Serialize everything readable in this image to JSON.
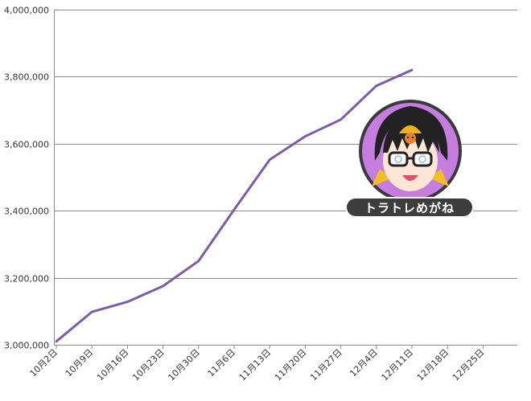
{
  "chart_data": {
    "type": "line",
    "title": "",
    "xlabel": "",
    "ylabel": "",
    "categories": [
      "10月2日",
      "10月9日",
      "10月16日",
      "10月23日",
      "10月30日",
      "11月6日",
      "11月13日",
      "11月20日",
      "11月27日",
      "12月4日",
      "12月11日",
      "12月18日",
      "12月25日"
    ],
    "series": [
      {
        "values": [
          3010000,
          3098000,
          3128000,
          3175000,
          3250000,
          3403000,
          3552000,
          3622000,
          3672000,
          3773000,
          3820000,
          null,
          null
        ]
      }
    ],
    "ylim": [
      3000000,
      4000000
    ],
    "yticks": [
      3000000,
      3200000,
      3400000,
      3600000,
      3800000,
      4000000
    ],
    "ytick_labels": [
      "3,000,000",
      "3,200,000",
      "3,400,000",
      "3,600,000",
      "3,800,000",
      "4,000,000"
    ],
    "grid": true,
    "legend": "none"
  },
  "colors": {
    "series": "#7b5ea7",
    "grid": "#8c8c8c",
    "avatar_bg": "#c57de0",
    "avatar_ring": "#3a3a3a",
    "badge_bg": "#3d3d3d"
  },
  "mascot": {
    "icon": "mascot-avatar-icon",
    "name_label": "トラトレめがね"
  }
}
